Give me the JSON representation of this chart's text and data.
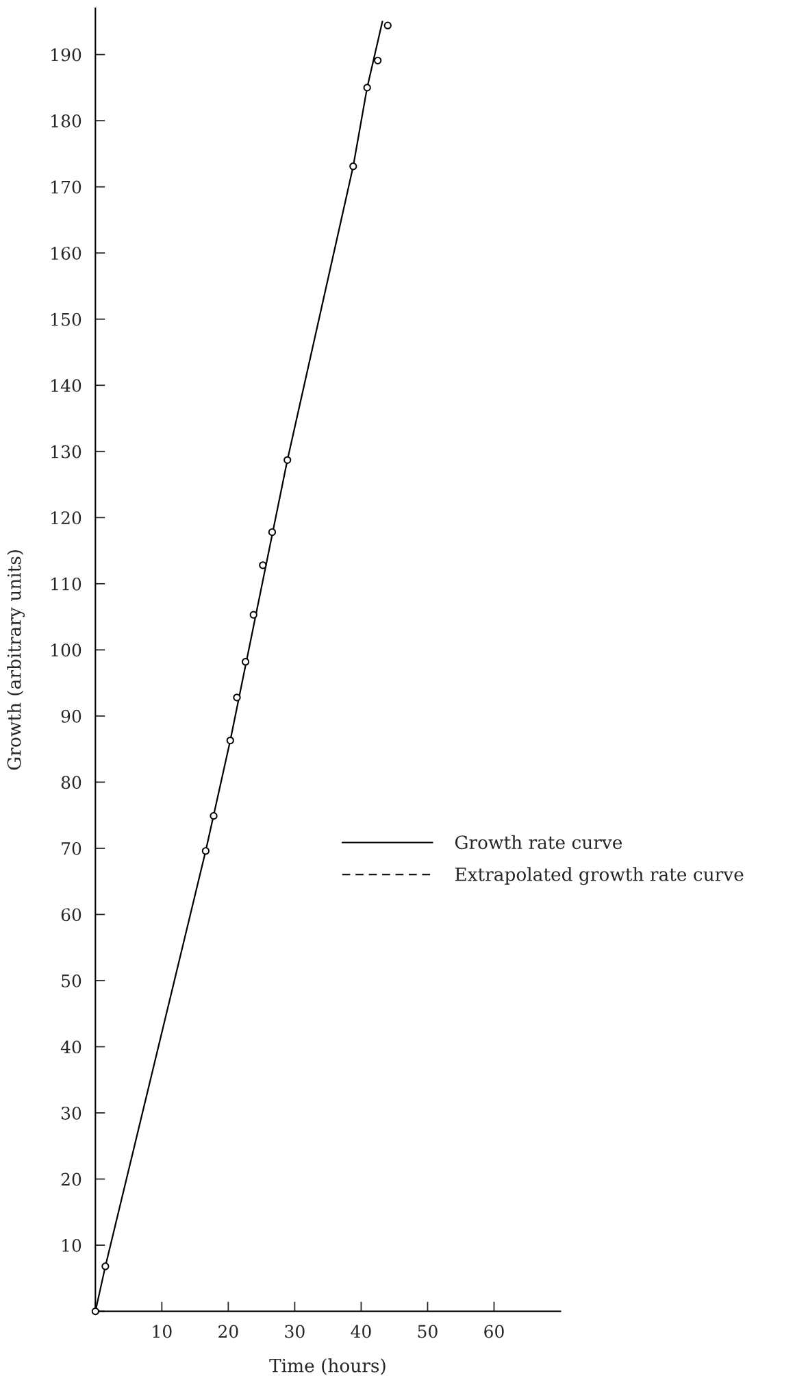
{
  "chart_data": {
    "type": "scatter",
    "xlabel": "Time (hours)",
    "ylabel": "Growth (arbitrary units)",
    "xlim": [
      0,
      70
    ],
    "xticks": [
      {
        "value": 0,
        "label": null
      },
      10,
      20,
      30,
      40,
      50,
      60
    ],
    "ylim": [
      0,
      197
    ],
    "yticks": [
      {
        "value": 0,
        "label": null
      },
      10,
      20,
      30,
      40,
      50,
      60,
      70,
      80,
      90,
      100,
      110,
      120,
      130,
      140,
      150,
      160,
      170,
      180,
      190
    ],
    "grid": false,
    "legend": "right",
    "series": [
      {
        "color": "#000000",
        "marker": "circle",
        "x": [
          0,
          1.5,
          16.6,
          17.8,
          20.3,
          21.3,
          22.6,
          23.8,
          25.2,
          26.6,
          28.9,
          38.8,
          40.9,
          42.5,
          44.0
        ],
        "values": [
          0,
          6.8,
          69.6,
          74.9,
          86.3,
          92.8,
          98.2,
          105.3,
          112.8,
          117.8,
          128.7,
          173.1,
          185.0,
          189.1,
          194.4
        ]
      },
      {
        "type": "line",
        "name": "Growth rate curve",
        "color": "#000000",
        "line_style": "solid",
        "marker": "none",
        "x": [
          0,
          1.5,
          16.6,
          20.3,
          28.9,
          38.8,
          40.9,
          43.2
        ],
        "values": [
          0,
          6.8,
          69.6,
          86.3,
          128.7,
          173.1,
          185.0,
          195.0
        ]
      },
      {
        "type": "line",
        "name": "Extrapolated growth rate curve",
        "color": "#000000",
        "line_style": "dashed",
        "marker": "none"
      }
    ]
  }
}
